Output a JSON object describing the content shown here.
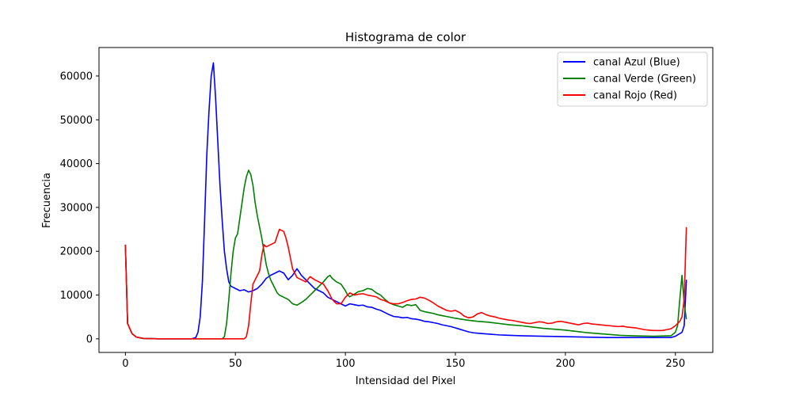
{
  "chart_data": {
    "type": "line",
    "title": "Histograma de color",
    "xlabel": "Intensidad del Pixel",
    "ylabel": "Frecuencia",
    "xlim": [
      -12,
      267
    ],
    "ylim": [
      -3100,
      66500
    ],
    "xticks": [
      0,
      50,
      100,
      150,
      200,
      250
    ],
    "yticks": [
      0,
      10000,
      20000,
      30000,
      40000,
      50000,
      60000
    ],
    "grid": false,
    "legend_position": "top-right",
    "series": [
      {
        "name": "canal Azul (Blue)",
        "color": "#0000ff",
        "points": [
          [
            0,
            21500
          ],
          [
            1,
            3500
          ],
          [
            3,
            1200
          ],
          [
            5,
            400
          ],
          [
            8,
            100
          ],
          [
            15,
            0
          ],
          [
            30,
            0
          ],
          [
            32,
            300
          ],
          [
            33,
            1500
          ],
          [
            34,
            5000
          ],
          [
            35,
            13000
          ],
          [
            36,
            27000
          ],
          [
            37,
            42000
          ],
          [
            38,
            52000
          ],
          [
            39,
            60000
          ],
          [
            40,
            63000
          ],
          [
            41,
            55000
          ],
          [
            42,
            45000
          ],
          [
            43,
            35000
          ],
          [
            44,
            27000
          ],
          [
            45,
            20000
          ],
          [
            46,
            16000
          ],
          [
            47,
            13000
          ],
          [
            48,
            12000
          ],
          [
            50,
            11500
          ],
          [
            52,
            11000
          ],
          [
            54,
            11200
          ],
          [
            56,
            10700
          ],
          [
            58,
            11000
          ],
          [
            60,
            11500
          ],
          [
            62,
            12500
          ],
          [
            64,
            13800
          ],
          [
            66,
            14500
          ],
          [
            68,
            15000
          ],
          [
            70,
            15500
          ],
          [
            72,
            15000
          ],
          [
            74,
            13500
          ],
          [
            76,
            14500
          ],
          [
            78,
            16000
          ],
          [
            80,
            14500
          ],
          [
            82,
            13500
          ],
          [
            84,
            12500
          ],
          [
            86,
            11500
          ],
          [
            88,
            11000
          ],
          [
            90,
            10500
          ],
          [
            92,
            9500
          ],
          [
            94,
            9000
          ],
          [
            96,
            8500
          ],
          [
            98,
            8000
          ],
          [
            100,
            7500
          ],
          [
            102,
            8000
          ],
          [
            104,
            7800
          ],
          [
            106,
            7600
          ],
          [
            108,
            7700
          ],
          [
            110,
            7300
          ],
          [
            112,
            7200
          ],
          [
            114,
            6800
          ],
          [
            116,
            6500
          ],
          [
            118,
            6000
          ],
          [
            120,
            5500
          ],
          [
            122,
            5100
          ],
          [
            124,
            5000
          ],
          [
            126,
            4800
          ],
          [
            128,
            4900
          ],
          [
            130,
            4600
          ],
          [
            132,
            4500
          ],
          [
            134,
            4300
          ],
          [
            136,
            4000
          ],
          [
            138,
            3900
          ],
          [
            140,
            3700
          ],
          [
            142,
            3500
          ],
          [
            144,
            3200
          ],
          [
            146,
            3000
          ],
          [
            148,
            2800
          ],
          [
            150,
            2500
          ],
          [
            152,
            2200
          ],
          [
            154,
            1900
          ],
          [
            156,
            1600
          ],
          [
            158,
            1400
          ],
          [
            160,
            1300
          ],
          [
            165,
            1100
          ],
          [
            170,
            900
          ],
          [
            175,
            800
          ],
          [
            180,
            700
          ],
          [
            190,
            600
          ],
          [
            200,
            500
          ],
          [
            210,
            400
          ],
          [
            220,
            300
          ],
          [
            230,
            300
          ],
          [
            240,
            300
          ],
          [
            248,
            300
          ],
          [
            250,
            600
          ],
          [
            252,
            1200
          ],
          [
            253,
            1500
          ],
          [
            254,
            3000
          ],
          [
            255,
            13500
          ]
        ]
      },
      {
        "name": "canal Verde (Green)",
        "color": "#008000",
        "points": [
          [
            0,
            21500
          ],
          [
            1,
            3500
          ],
          [
            3,
            1200
          ],
          [
            5,
            400
          ],
          [
            8,
            100
          ],
          [
            15,
            0
          ],
          [
            40,
            0
          ],
          [
            44,
            0
          ],
          [
            45,
            500
          ],
          [
            46,
            3500
          ],
          [
            47,
            9000
          ],
          [
            48,
            15000
          ],
          [
            49,
            20000
          ],
          [
            50,
            23000
          ],
          [
            51,
            24000
          ],
          [
            52,
            27500
          ],
          [
            53,
            31000
          ],
          [
            54,
            34500
          ],
          [
            55,
            37000
          ],
          [
            56,
            38500
          ],
          [
            57,
            37500
          ],
          [
            58,
            35000
          ],
          [
            59,
            31000
          ],
          [
            60,
            28000
          ],
          [
            61,
            25500
          ],
          [
            62,
            23000
          ],
          [
            63,
            20000
          ],
          [
            64,
            17000
          ],
          [
            65,
            15000
          ],
          [
            66,
            13500
          ],
          [
            67,
            12500
          ],
          [
            68,
            11500
          ],
          [
            69,
            10500
          ],
          [
            70,
            10000
          ],
          [
            72,
            9500
          ],
          [
            74,
            9000
          ],
          [
            76,
            8000
          ],
          [
            78,
            7700
          ],
          [
            80,
            8300
          ],
          [
            82,
            9000
          ],
          [
            84,
            10000
          ],
          [
            86,
            11000
          ],
          [
            88,
            12000
          ],
          [
            90,
            13000
          ],
          [
            92,
            14200
          ],
          [
            93,
            14500
          ],
          [
            94,
            13800
          ],
          [
            96,
            13000
          ],
          [
            98,
            12500
          ],
          [
            100,
            11000
          ],
          [
            101,
            10000
          ],
          [
            102,
            9600
          ],
          [
            104,
            10200
          ],
          [
            106,
            10800
          ],
          [
            108,
            11000
          ],
          [
            110,
            11500
          ],
          [
            112,
            11300
          ],
          [
            114,
            10500
          ],
          [
            116,
            10000
          ],
          [
            118,
            9000
          ],
          [
            120,
            8200
          ],
          [
            122,
            7800
          ],
          [
            124,
            7500
          ],
          [
            126,
            7200
          ],
          [
            128,
            7800
          ],
          [
            130,
            7600
          ],
          [
            132,
            7800
          ],
          [
            134,
            6500
          ],
          [
            136,
            6200
          ],
          [
            138,
            6000
          ],
          [
            140,
            5800
          ],
          [
            142,
            5500
          ],
          [
            144,
            5300
          ],
          [
            146,
            5100
          ],
          [
            148,
            4900
          ],
          [
            150,
            4700
          ],
          [
            155,
            4300
          ],
          [
            160,
            4000
          ],
          [
            165,
            3800
          ],
          [
            170,
            3500
          ],
          [
            175,
            3200
          ],
          [
            180,
            3000
          ],
          [
            185,
            2700
          ],
          [
            190,
            2400
          ],
          [
            195,
            2200
          ],
          [
            200,
            2000
          ],
          [
            205,
            1700
          ],
          [
            210,
            1400
          ],
          [
            215,
            1200
          ],
          [
            220,
            1000
          ],
          [
            225,
            800
          ],
          [
            230,
            700
          ],
          [
            240,
            600
          ],
          [
            248,
            700
          ],
          [
            250,
            1500
          ],
          [
            251,
            3000
          ],
          [
            252,
            9000
          ],
          [
            253,
            14500
          ],
          [
            254,
            8000
          ],
          [
            255,
            4500
          ]
        ]
      },
      {
        "name": "canal Rojo (Red)",
        "color": "#ff0000",
        "points": [
          [
            0,
            21500
          ],
          [
            1,
            3500
          ],
          [
            3,
            1200
          ],
          [
            5,
            400
          ],
          [
            8,
            100
          ],
          [
            15,
            0
          ],
          [
            50,
            0
          ],
          [
            54,
            0
          ],
          [
            55,
            500
          ],
          [
            56,
            3000
          ],
          [
            57,
            8000
          ],
          [
            58,
            12500
          ],
          [
            60,
            14500
          ],
          [
            61,
            15500
          ],
          [
            62,
            19000
          ],
          [
            63,
            21500
          ],
          [
            64,
            21000
          ],
          [
            66,
            21500
          ],
          [
            68,
            22000
          ],
          [
            69,
            23500
          ],
          [
            70,
            25000
          ],
          [
            72,
            24500
          ],
          [
            73,
            23000
          ],
          [
            74,
            21000
          ],
          [
            75,
            18500
          ],
          [
            76,
            16000
          ],
          [
            78,
            14000
          ],
          [
            80,
            13500
          ],
          [
            82,
            13000
          ],
          [
            84,
            14200
          ],
          [
            86,
            13500
          ],
          [
            88,
            13000
          ],
          [
            90,
            12500
          ],
          [
            92,
            11000
          ],
          [
            94,
            9000
          ],
          [
            96,
            8000
          ],
          [
            98,
            8000
          ],
          [
            100,
            9500
          ],
          [
            102,
            10500
          ],
          [
            104,
            10000
          ],
          [
            106,
            10200
          ],
          [
            108,
            10300
          ],
          [
            110,
            10000
          ],
          [
            112,
            9800
          ],
          [
            114,
            9600
          ],
          [
            116,
            9000
          ],
          [
            118,
            8700
          ],
          [
            120,
            8200
          ],
          [
            122,
            8000
          ],
          [
            124,
            8000
          ],
          [
            126,
            8300
          ],
          [
            128,
            8700
          ],
          [
            130,
            9000
          ],
          [
            132,
            9100
          ],
          [
            134,
            9500
          ],
          [
            136,
            9300
          ],
          [
            138,
            8800
          ],
          [
            140,
            8200
          ],
          [
            142,
            7500
          ],
          [
            144,
            7000
          ],
          [
            146,
            6500
          ],
          [
            148,
            6300
          ],
          [
            150,
            6500
          ],
          [
            152,
            6000
          ],
          [
            154,
            5200
          ],
          [
            156,
            4800
          ],
          [
            158,
            5000
          ],
          [
            160,
            5700
          ],
          [
            162,
            6000
          ],
          [
            164,
            5500
          ],
          [
            166,
            5200
          ],
          [
            168,
            5000
          ],
          [
            170,
            4700
          ],
          [
            172,
            4500
          ],
          [
            174,
            4300
          ],
          [
            176,
            4200
          ],
          [
            178,
            4000
          ],
          [
            180,
            3800
          ],
          [
            182,
            3600
          ],
          [
            184,
            3500
          ],
          [
            186,
            3700
          ],
          [
            188,
            3900
          ],
          [
            190,
            3800
          ],
          [
            192,
            3500
          ],
          [
            194,
            3600
          ],
          [
            196,
            3900
          ],
          [
            198,
            4000
          ],
          [
            200,
            3800
          ],
          [
            202,
            3600
          ],
          [
            204,
            3400
          ],
          [
            206,
            3200
          ],
          [
            208,
            3500
          ],
          [
            210,
            3600
          ],
          [
            212,
            3400
          ],
          [
            214,
            3300
          ],
          [
            216,
            3200
          ],
          [
            218,
            3100
          ],
          [
            220,
            3000
          ],
          [
            222,
            2900
          ],
          [
            224,
            2800
          ],
          [
            226,
            2900
          ],
          [
            228,
            2700
          ],
          [
            230,
            2600
          ],
          [
            232,
            2500
          ],
          [
            234,
            2300
          ],
          [
            236,
            2100
          ],
          [
            238,
            2000
          ],
          [
            240,
            1900
          ],
          [
            242,
            1900
          ],
          [
            244,
            1900
          ],
          [
            246,
            2100
          ],
          [
            248,
            2300
          ],
          [
            250,
            3000
          ],
          [
            252,
            4000
          ],
          [
            253,
            5000
          ],
          [
            254,
            9000
          ],
          [
            255,
            25500
          ]
        ]
      }
    ]
  }
}
